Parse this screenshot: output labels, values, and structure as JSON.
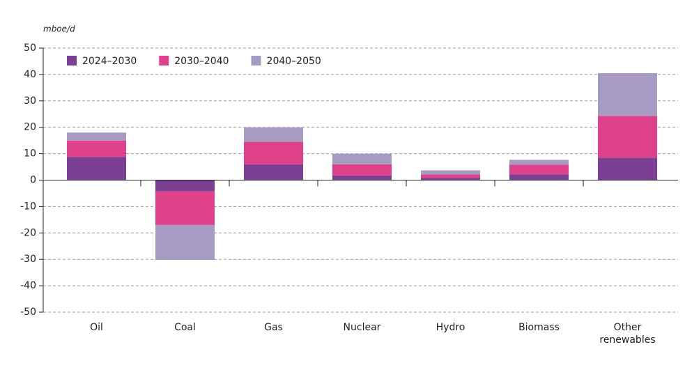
{
  "chart_data": {
    "type": "stacked_bar",
    "y_axis_label": "mboe/d",
    "categories": [
      "Oil",
      "Coal",
      "Gas",
      "Nuclear",
      "Hydro",
      "Biomass",
      "Other renewables"
    ],
    "series": [
      {
        "name": "2024–2030",
        "color": "#7b3f93",
        "values": [
          8.8,
          -4.3,
          6.0,
          1.8,
          0.8,
          2.2,
          8.5
        ]
      },
      {
        "name": "2030–2040",
        "color": "#e0418b",
        "values": [
          6.2,
          -12.7,
          8.5,
          4.2,
          1.3,
          3.6,
          15.8
        ]
      },
      {
        "name": "2040–2050",
        "color": "#a79bc4",
        "values": [
          3.0,
          -13.2,
          5.5,
          4.0,
          1.6,
          1.9,
          16.2
        ]
      }
    ],
    "ylim": [
      -50,
      50
    ],
    "yticks": [
      -50,
      -40,
      -30,
      -20,
      -10,
      0,
      10,
      20,
      30,
      40,
      50
    ],
    "grid": true,
    "legend": "top-left"
  }
}
